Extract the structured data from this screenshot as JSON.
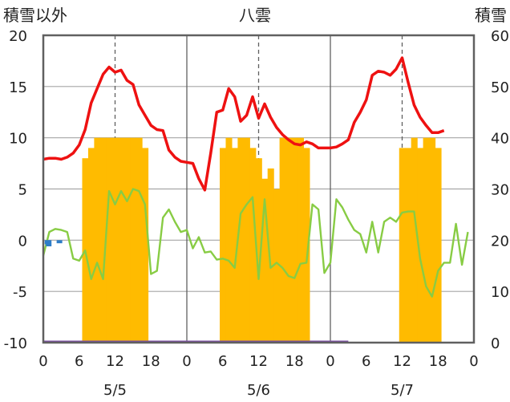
{
  "chart_data": {
    "type": "combo",
    "title": "八雲",
    "left_axis_label": "積雪以外",
    "right_axis_label": "積雪",
    "left_ylim": [
      -10,
      20
    ],
    "left_ticks": [
      20,
      15,
      10,
      5,
      0,
      -5,
      -10
    ],
    "right_ylim": [
      0,
      60
    ],
    "right_ticks": [
      60,
      50,
      40,
      30,
      20,
      10,
      0
    ],
    "x_range_hours": [
      0,
      72
    ],
    "x_tick_positions": [
      0,
      6,
      12,
      18,
      24,
      30,
      36,
      42,
      48,
      54,
      60,
      66,
      72
    ],
    "x_tick_labels": [
      "0",
      "6",
      "12",
      "18",
      "0",
      "6",
      "12",
      "18",
      "0",
      "6",
      "12",
      "18",
      "0"
    ],
    "day_labels": [
      {
        "hour": 12,
        "label": "5/5"
      },
      {
        "hour": 36,
        "label": "5/6"
      },
      {
        "hour": 60,
        "label": "5/7"
      }
    ],
    "grid": true,
    "snow_bars": [
      {
        "hour": 7,
        "value": 36
      },
      {
        "hour": 8,
        "value": 38
      },
      {
        "hour": 9,
        "value": 40
      },
      {
        "hour": 10,
        "value": 40
      },
      {
        "hour": 11,
        "value": 40
      },
      {
        "hour": 12,
        "value": 40
      },
      {
        "hour": 13,
        "value": 40
      },
      {
        "hour": 14,
        "value": 40
      },
      {
        "hour": 15,
        "value": 40
      },
      {
        "hour": 16,
        "value": 40
      },
      {
        "hour": 17,
        "value": 38
      },
      {
        "hour": 30,
        "value": 38
      },
      {
        "hour": 31,
        "value": 40
      },
      {
        "hour": 32,
        "value": 38
      },
      {
        "hour": 33,
        "value": 40
      },
      {
        "hour": 34,
        "value": 40
      },
      {
        "hour": 35,
        "value": 38
      },
      {
        "hour": 36,
        "value": 36
      },
      {
        "hour": 37,
        "value": 32
      },
      {
        "hour": 38,
        "value": 34
      },
      {
        "hour": 39,
        "value": 30
      },
      {
        "hour": 40,
        "value": 40
      },
      {
        "hour": 41,
        "value": 40
      },
      {
        "hour": 42,
        "value": 40
      },
      {
        "hour": 43,
        "value": 40
      },
      {
        "hour": 44,
        "value": 38
      },
      {
        "hour": 60,
        "value": 38
      },
      {
        "hour": 61,
        "value": 38
      },
      {
        "hour": 62,
        "value": 40
      },
      {
        "hour": 63,
        "value": 38
      },
      {
        "hour": 64,
        "value": 40
      },
      {
        "hour": 65,
        "value": 40
      },
      {
        "hour": 66,
        "value": 38
      }
    ],
    "series": [
      {
        "color": "#ee1111",
        "values": [
          7.9,
          8.0,
          8.0,
          7.9,
          8.1,
          8.5,
          9.3,
          10.8,
          13.4,
          14.8,
          16.2,
          16.9,
          16.4,
          16.6,
          15.6,
          15.2,
          13.2,
          12.2,
          11.2,
          10.8,
          10.7,
          8.8,
          8.1,
          7.7,
          7.6,
          7.5,
          6.0,
          4.9,
          8.5,
          12.5,
          12.7,
          14.8,
          14.0,
          11.6,
          12.2,
          14.0,
          11.9,
          13.3,
          12.0,
          11.0,
          10.3,
          9.8,
          9.4,
          9.3,
          9.6,
          9.4,
          9.0,
          9.0,
          9.0,
          9.1,
          9.4,
          9.8,
          11.5,
          12.5,
          13.7,
          16.1,
          16.5,
          16.4,
          16.1,
          16.7,
          17.8,
          15.4,
          13.2,
          12.0,
          11.2,
          10.5,
          10.5,
          10.7
        ]
      },
      {
        "color": "#88cc44",
        "values": [
          -1.5,
          0.8,
          1.1,
          1.0,
          0.8,
          -1.8,
          -2.0,
          -1.0,
          -3.8,
          -2.2,
          -3.8,
          4.8,
          3.5,
          4.8,
          3.8,
          5.0,
          4.8,
          3.5,
          -3.3,
          -3.0,
          2.2,
          3.0,
          1.8,
          0.8,
          1.0,
          -0.8,
          0.3,
          -1.2,
          -1.1,
          -1.9,
          -1.8,
          -2.0,
          -2.7,
          2.6,
          3.5,
          4.2,
          -3.8,
          4.0,
          -2.7,
          -2.2,
          -2.7,
          -3.5,
          -3.7,
          -2.3,
          -2.2,
          3.5,
          3.0,
          -3.2,
          -2.2,
          4.0,
          3.2,
          2.0,
          1.0,
          0.6,
          -1.2,
          1.8,
          -1.2,
          1.8,
          2.2,
          1.8,
          2.7,
          2.8,
          2.8,
          -1.8,
          -4.5,
          -5.5,
          -3.0,
          -2.2,
          -2.2,
          1.6,
          -2.4,
          0.8
        ]
      },
      {
        "color": "#2e7dc8",
        "points": [
          [
            0.7,
            -0.4
          ],
          [
            0.9,
            -0.6
          ],
          [
            2.7,
            -0.3
          ]
        ]
      },
      {
        "color": "#7b4ea3",
        "values": [
          -10,
          -10
        ]
      }
    ]
  }
}
